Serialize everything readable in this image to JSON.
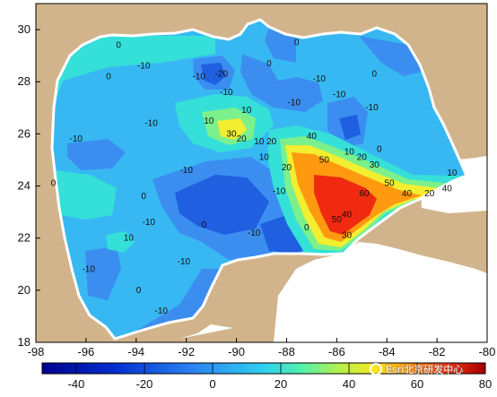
{
  "map": {
    "x_ticks": [
      "-98",
      "-96",
      "-94",
      "-92",
      "-90",
      "-88",
      "-86",
      "-84",
      "-82",
      "-80"
    ],
    "y_ticks": [
      "30",
      "28",
      "26",
      "24",
      "22",
      "20",
      "18"
    ],
    "colorbar_ticks": [
      "-40",
      "-20",
      "0",
      "20",
      "40",
      "60",
      "80"
    ],
    "watermark": "Esri北京研发中心",
    "colors": {
      "land": "#d2b48c",
      "coast_white": "#ffffff",
      "level_m40": "#0000a0",
      "level_m20": "#1f5fe0",
      "level_m10": "#3b8ef0",
      "level_0": "#38b8f2",
      "level_10": "#35e0d8",
      "level_20": "#7cf08a",
      "level_30": "#f2ee30",
      "level_40": "#ff9a10",
      "level_60": "#f02a10"
    },
    "contour_labels": [
      {
        "text": "0",
        "lon": -94.7,
        "lat": 29.3
      },
      {
        "text": "0",
        "lon": -95.1,
        "lat": 28.1
      },
      {
        "text": "-10",
        "lon": -93.7,
        "lat": 28.5
      },
      {
        "text": "-10",
        "lon": -91.5,
        "lat": 28.1
      },
      {
        "text": "-20",
        "lon": -90.6,
        "lat": 28.2
      },
      {
        "text": "-10",
        "lon": -90.4,
        "lat": 27.5
      },
      {
        "text": "0",
        "lon": -88.7,
        "lat": 28.6
      },
      {
        "text": "0",
        "lon": -87.6,
        "lat": 29.4
      },
      {
        "text": "-10",
        "lon": -86.7,
        "lat": 28.0
      },
      {
        "text": "-10",
        "lon": -85.9,
        "lat": 27.4
      },
      {
        "text": "-10",
        "lon": -87.7,
        "lat": 27.1
      },
      {
        "text": "0",
        "lon": -84.5,
        "lat": 28.2
      },
      {
        "text": "-10",
        "lon": -84.6,
        "lat": 26.9
      },
      {
        "text": "-10",
        "lon": -93.4,
        "lat": 26.3
      },
      {
        "text": "10",
        "lon": -91.1,
        "lat": 26.4
      },
      {
        "text": "10",
        "lon": -89.6,
        "lat": 26.8
      },
      {
        "text": "30",
        "lon": -90.2,
        "lat": 25.9
      },
      {
        "text": "20",
        "lon": -89.8,
        "lat": 25.7
      },
      {
        "text": "10",
        "lon": -89.1,
        "lat": 25.6
      },
      {
        "text": "20",
        "lon": -88.6,
        "lat": 25.6
      },
      {
        "text": "40",
        "lon": -87.0,
        "lat": 25.8
      },
      {
        "text": "10",
        "lon": -88.9,
        "lat": 25.0
      },
      {
        "text": "20",
        "lon": -88.0,
        "lat": 24.6
      },
      {
        "text": "50",
        "lon": -86.5,
        "lat": 24.9
      },
      {
        "text": "10",
        "lon": -85.5,
        "lat": 25.2
      },
      {
        "text": "20",
        "lon": -85.0,
        "lat": 25.0
      },
      {
        "text": "30",
        "lon": -84.5,
        "lat": 24.7
      },
      {
        "text": "0",
        "lon": -84.3,
        "lat": 25.3
      },
      {
        "text": "50",
        "lon": -83.9,
        "lat": 24.0
      },
      {
        "text": "60",
        "lon": -84.9,
        "lat": 23.6
      },
      {
        "text": "40",
        "lon": -83.2,
        "lat": 23.6
      },
      {
        "text": "40",
        "lon": -85.6,
        "lat": 22.8
      },
      {
        "text": "50",
        "lon": -86.0,
        "lat": 22.6
      },
      {
        "text": "30",
        "lon": -85.6,
        "lat": 22.0
      },
      {
        "text": "20",
        "lon": -82.3,
        "lat": 23.6
      },
      {
        "text": "40",
        "lon": -81.6,
        "lat": 23.8
      },
      {
        "text": "10",
        "lon": -81.4,
        "lat": 24.4
      },
      {
        "text": "-10",
        "lon": -92.0,
        "lat": 24.5
      },
      {
        "text": "-10",
        "lon": -88.3,
        "lat": 23.7
      },
      {
        "text": "-10",
        "lon": -96.4,
        "lat": 25.7
      },
      {
        "text": "0",
        "lon": -97.3,
        "lat": 24.0
      },
      {
        "text": "0",
        "lon": -93.7,
        "lat": 23.5
      },
      {
        "text": "-10",
        "lon": -93.5,
        "lat": 22.5
      },
      {
        "text": "10",
        "lon": -94.3,
        "lat": 21.9
      },
      {
        "text": "0",
        "lon": -91.3,
        "lat": 22.4
      },
      {
        "text": "-10",
        "lon": -92.1,
        "lat": 21.0
      },
      {
        "text": "-10",
        "lon": -89.3,
        "lat": 22.1
      },
      {
        "text": "0",
        "lon": -87.2,
        "lat": 22.3
      },
      {
        "text": "-10",
        "lon": -95.9,
        "lat": 20.7
      },
      {
        "text": "0",
        "lon": -93.9,
        "lat": 19.9
      },
      {
        "text": "-10",
        "lon": -93.0,
        "lat": 19.1
      }
    ]
  }
}
